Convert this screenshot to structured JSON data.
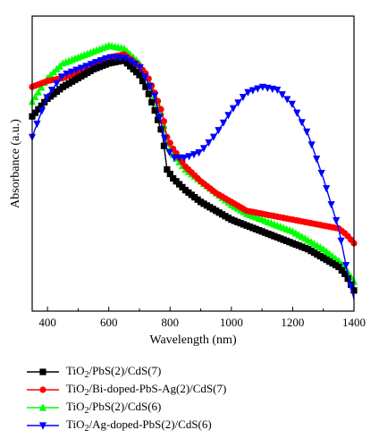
{
  "chart_data": {
    "type": "line",
    "xlabel": "Wavelength (nm)",
    "ylabel": "Absorbance (a.u.)",
    "xlim": [
      350,
      1400
    ],
    "ylim": [
      0,
      1
    ],
    "xticks": [
      400,
      600,
      800,
      1000,
      1200,
      1400
    ],
    "y_tick_labels_shown": false,
    "grid": false,
    "legend_position": "below",
    "series": [
      {
        "name_parts": [
          "TiO",
          "2",
          "/PbS(2)/CdS(7)"
        ],
        "color": "#000000",
        "marker": "square",
        "x": [
          350,
          400,
          450,
          500,
          550,
          600,
          650,
          700,
          725,
          750,
          775,
          790,
          810,
          850,
          900,
          950,
          1000,
          1050,
          1100,
          1150,
          1200,
          1250,
          1300,
          1350,
          1375,
          1400
        ],
        "y": [
          0.66,
          0.72,
          0.76,
          0.79,
          0.82,
          0.84,
          0.85,
          0.8,
          0.75,
          0.68,
          0.6,
          0.48,
          0.45,
          0.41,
          0.37,
          0.34,
          0.31,
          0.29,
          0.27,
          0.25,
          0.23,
          0.21,
          0.18,
          0.15,
          0.12,
          0.07
        ]
      },
      {
        "name_parts": [
          "TiO",
          "2",
          "/Bi-doped-PbS-Ag(2)/CdS(7)"
        ],
        "color": "#ff0000",
        "marker": "circle",
        "x": [
          350,
          400,
          450,
          500,
          550,
          600,
          650,
          700,
          725,
          750,
          775,
          790,
          810,
          850,
          900,
          950,
          1000,
          1050,
          1100,
          1150,
          1200,
          1250,
          1300,
          1350,
          1375,
          1400
        ],
        "y": [
          0.76,
          0.78,
          0.79,
          0.81,
          0.84,
          0.86,
          0.87,
          0.83,
          0.8,
          0.74,
          0.67,
          0.59,
          0.55,
          0.49,
          0.44,
          0.4,
          0.37,
          0.34,
          0.33,
          0.32,
          0.31,
          0.3,
          0.29,
          0.28,
          0.26,
          0.23
        ]
      },
      {
        "name_parts": [
          "TiO",
          "2",
          "/PbS(2)/CdS(6)"
        ],
        "color": "#00ff00",
        "marker": "triangle-up",
        "x": [
          350,
          400,
          450,
          500,
          550,
          600,
          650,
          700,
          725,
          750,
          775,
          790,
          810,
          850,
          900,
          950,
          1000,
          1050,
          1100,
          1150,
          1200,
          1250,
          1300,
          1350,
          1375,
          1400
        ],
        "y": [
          0.71,
          0.79,
          0.84,
          0.86,
          0.88,
          0.9,
          0.89,
          0.84,
          0.79,
          0.73,
          0.66,
          0.57,
          0.53,
          0.48,
          0.44,
          0.4,
          0.36,
          0.33,
          0.31,
          0.29,
          0.27,
          0.24,
          0.21,
          0.17,
          0.14,
          0.1
        ]
      },
      {
        "name_parts": [
          "TiO",
          "2",
          "/Ag-doped-PbS(2)/CdS(6)"
        ],
        "color": "#0000ff",
        "marker": "triangle-down",
        "x": [
          350,
          400,
          450,
          500,
          550,
          600,
          650,
          700,
          750,
          790,
          810,
          850,
          900,
          950,
          1000,
          1050,
          1100,
          1150,
          1200,
          1250,
          1300,
          1350,
          1375,
          1400
        ],
        "y": [
          0.59,
          0.73,
          0.8,
          0.82,
          0.84,
          0.86,
          0.86,
          0.83,
          0.73,
          0.55,
          0.52,
          0.52,
          0.54,
          0.6,
          0.68,
          0.74,
          0.76,
          0.75,
          0.7,
          0.6,
          0.45,
          0.28,
          0.15,
          0.04
        ]
      }
    ]
  }
}
